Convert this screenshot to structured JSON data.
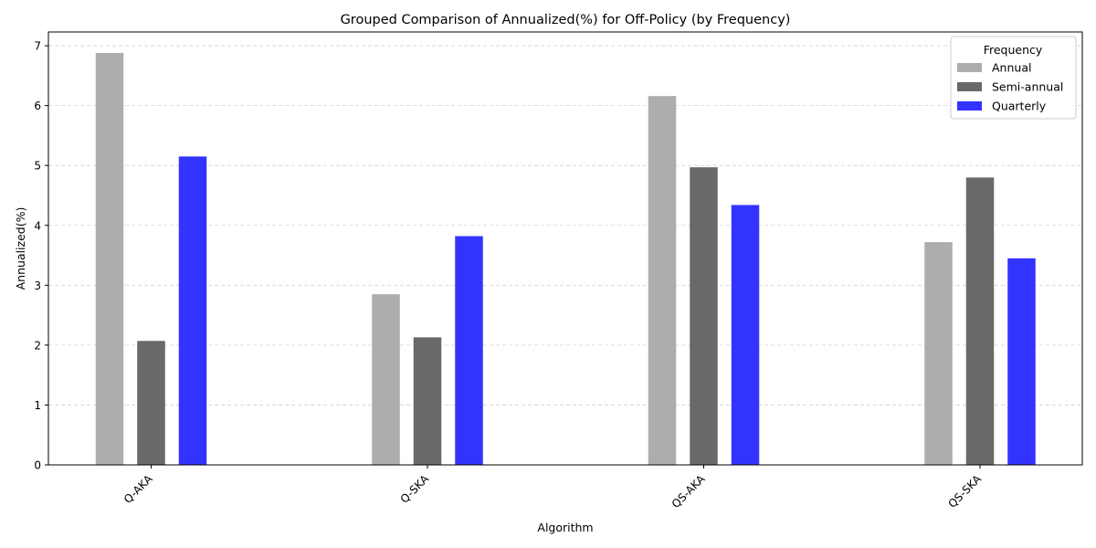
{
  "chart_data": {
    "type": "bar",
    "title": "Grouped Comparison of Annualized(%) for Off-Policy (by Frequency)",
    "xlabel": "Algorithm",
    "ylabel": "Annualized(%)",
    "categories": [
      "Q-AKA",
      "Q-SKA",
      "QS-AKA",
      "QS-SKA"
    ],
    "series": [
      {
        "name": "Annual",
        "color": "#adadad",
        "values": [
          6.88,
          2.85,
          6.16,
          3.72
        ]
      },
      {
        "name": "Semi-annual",
        "color": "#696969",
        "values": [
          2.07,
          2.13,
          4.97,
          4.8
        ]
      },
      {
        "name": "Quarterly",
        "color": "#3333ff",
        "values": [
          5.15,
          3.82,
          4.34,
          3.45
        ]
      }
    ],
    "ylim": [
      0,
      7.23
    ],
    "yticks": [
      0,
      1,
      2,
      3,
      4,
      5,
      6,
      7
    ],
    "grid": true,
    "legend": {
      "title": "Frequency",
      "position": "upper-right"
    }
  }
}
